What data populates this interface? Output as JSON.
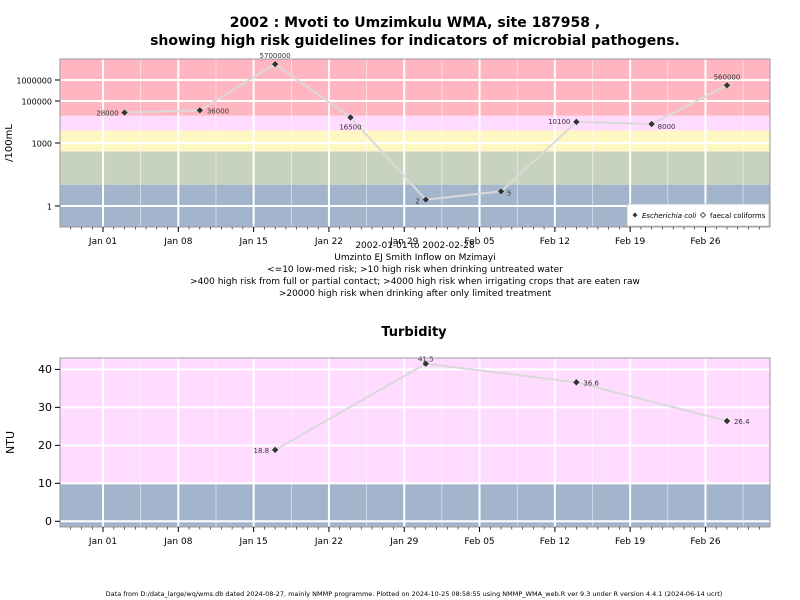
{
  "header": {
    "title_line1": "2002 : Mvoti to Umzimkulu WMA, site 187958 ,",
    "title_line2": "showing high risk guidelines for indicators of microbial pathogens."
  },
  "notes": {
    "date_range": "2002-01-01 to 2002-02-28",
    "site_name": "Umzinto EJ Smith Inflow on Mzimayi",
    "line1": "<=10 low-med risk; >10 high risk when drinking untreated water",
    "line2": ">400 high risk from full or partial contact; >4000 high risk when irrigating crops that are eaten raw",
    "line3": ">20000 high risk when drinking after only limited treatment"
  },
  "footer": {
    "text": "Data from D:/data_large/wq/wms.db dated 2024-08-27, mainly NMMP programme. Plotted on 2024-10-25 08:58:55 using NMMP_WMA_web.R ver 9.3 under R version 4.4.1 (2024-06-14 ucrt)"
  },
  "colors": {
    "red_band": "#ffb6c1",
    "pink_band": "#ffdcff",
    "yellow_band": "#fff7c2",
    "sage_band": "#c8d3bf",
    "blue_band": "#a3b5cd",
    "line": "#d9d9d9",
    "marker": "#333333"
  },
  "chart_data": [
    {
      "type": "line",
      "ylabel": "/100mL",
      "yscale": "log10",
      "ylim": [
        0.1,
        10000000
      ],
      "xlim": [
        "2001-12-28",
        "2002-03-04"
      ],
      "x_ticks": [
        {
          "date": "2002-01-01",
          "label": "Jan 01"
        },
        {
          "date": "2002-01-08",
          "label": "Jan 08"
        },
        {
          "date": "2002-01-15",
          "label": "Jan 15"
        },
        {
          "date": "2002-01-22",
          "label": "Jan 22"
        },
        {
          "date": "2002-01-29",
          "label": "Jan 29"
        },
        {
          "date": "2002-02-05",
          "label": "Feb 05"
        },
        {
          "date": "2002-02-12",
          "label": "Feb 12"
        },
        {
          "date": "2002-02-19",
          "label": "Feb 19"
        },
        {
          "date": "2002-02-26",
          "label": "Feb 26"
        }
      ],
      "y_ticks": [
        {
          "value": 1,
          "label": "1"
        },
        {
          "value": 1000,
          "label": "1000"
        },
        {
          "value": 100000,
          "label": "100000"
        },
        {
          "value": 1000000,
          "label": "1000000"
        }
      ],
      "bands": [
        {
          "from": 0.1,
          "to": 10,
          "color": "#a3b5cd"
        },
        {
          "from": 10,
          "to": 400,
          "color": "#c8d3bf"
        },
        {
          "from": 400,
          "to": 4000,
          "color": "#fff7c2"
        },
        {
          "from": 4000,
          "to": 20000,
          "color": "#ffdcff"
        },
        {
          "from": 20000,
          "to": 10000000,
          "color": "#ffb6c1"
        }
      ],
      "series": [
        {
          "name": "Escherichia coli",
          "points": [
            {
              "date": "2002-01-03",
              "value": 28000,
              "label": "28000"
            },
            {
              "date": "2002-01-10",
              "value": 36000,
              "label": "36000"
            },
            {
              "date": "2002-01-17",
              "value": 5700000,
              "label": "5700000"
            },
            {
              "date": "2002-01-24",
              "value": 16500,
              "label": "16500"
            },
            {
              "date": "2002-01-31",
              "value": 2,
              "label": "2"
            },
            {
              "date": "2002-02-07",
              "value": 5,
              "label": "5"
            },
            {
              "date": "2002-02-14",
              "value": 10100,
              "label": "10100"
            },
            {
              "date": "2002-02-21",
              "value": 8000,
              "label": "8000"
            },
            {
              "date": "2002-02-28",
              "value": 560000,
              "label": "560000"
            }
          ]
        }
      ],
      "legend": {
        "position": "bottom-right",
        "entries": [
          {
            "name": "Escherichia coli",
            "italic": true,
            "marker": "filled-diamond"
          },
          {
            "name": "faecal coliforms",
            "italic": false,
            "marker": "open-diamond"
          }
        ]
      },
      "grid": true
    },
    {
      "type": "line",
      "title": "Turbidity",
      "ylabel": "NTU",
      "ylim": [
        -1.5,
        43
      ],
      "xlim": [
        "2001-12-28",
        "2002-03-04"
      ],
      "x_ticks": [
        {
          "date": "2002-01-01",
          "label": "Jan 01"
        },
        {
          "date": "2002-01-08",
          "label": "Jan 08"
        },
        {
          "date": "2002-01-15",
          "label": "Jan 15"
        },
        {
          "date": "2002-01-22",
          "label": "Jan 22"
        },
        {
          "date": "2002-01-29",
          "label": "Jan 29"
        },
        {
          "date": "2002-02-05",
          "label": "Feb 05"
        },
        {
          "date": "2002-02-12",
          "label": "Feb 12"
        },
        {
          "date": "2002-02-19",
          "label": "Feb 19"
        },
        {
          "date": "2002-02-26",
          "label": "Feb 26"
        }
      ],
      "y_ticks": [
        {
          "value": 0,
          "label": "0"
        },
        {
          "value": 10,
          "label": "10"
        },
        {
          "value": 20,
          "label": "20"
        },
        {
          "value": 30,
          "label": "30"
        },
        {
          "value": 40,
          "label": "40"
        }
      ],
      "bands": [
        {
          "from": -1.5,
          "to": 10,
          "color": "#a3b5cd"
        },
        {
          "from": 10,
          "to": 43,
          "color": "#ffdcff"
        }
      ],
      "series": [
        {
          "points": [
            {
              "date": "2002-01-17",
              "value": 18.8,
              "label": "18.8"
            },
            {
              "date": "2002-01-31",
              "value": 41.5,
              "label": "41.5"
            },
            {
              "date": "2002-02-14",
              "value": 36.6,
              "label": "36.6"
            },
            {
              "date": "2002-02-28",
              "value": 26.4,
              "label": "26.4"
            }
          ]
        }
      ],
      "grid": true
    }
  ]
}
